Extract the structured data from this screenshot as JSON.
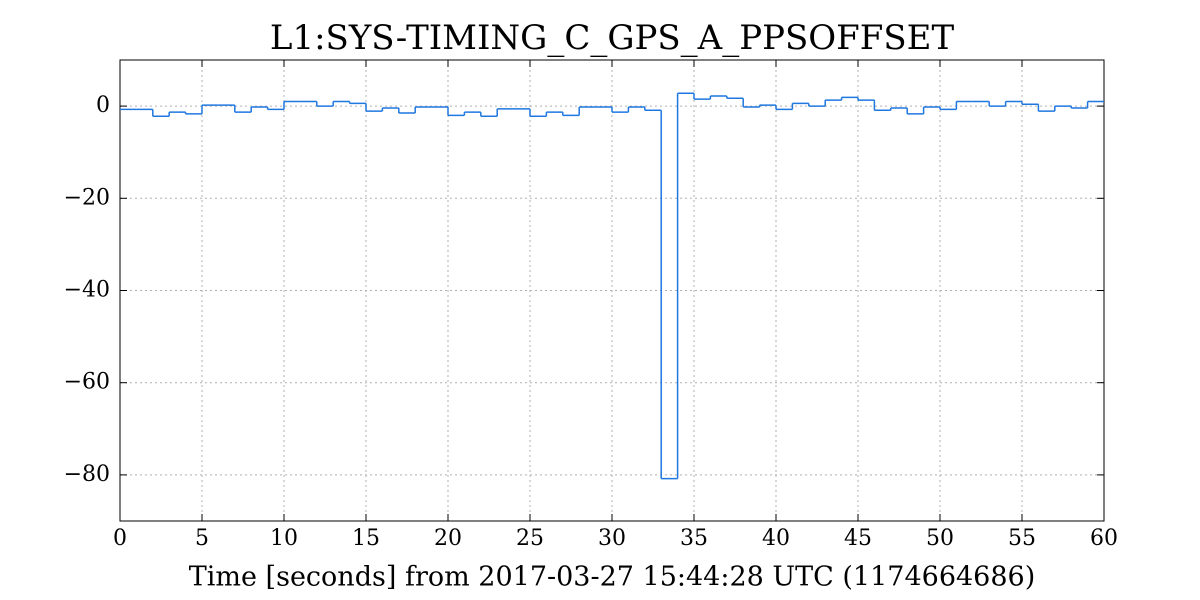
{
  "chart_data": {
    "type": "step",
    "title": "L1:SYS-TIMING_C_GPS_A_PPSOFFSET",
    "x_label": "Time [seconds] from 2017-03-27 15:44:28 UTC (1174664686)",
    "x": [
      0,
      1,
      2,
      3,
      4,
      5,
      6,
      7,
      8,
      9,
      10,
      11,
      12,
      13,
      14,
      15,
      16,
      17,
      18,
      19,
      20,
      21,
      22,
      23,
      24,
      25,
      26,
      27,
      28,
      29,
      30,
      31,
      32,
      33,
      34,
      35,
      36,
      37,
      38,
      39,
      40,
      41,
      42,
      43,
      44,
      45,
      46,
      47,
      48,
      49,
      50,
      51,
      52,
      53,
      54,
      55,
      56,
      57,
      58,
      59
    ],
    "series": [
      {
        "name": "L1:SYS-TIMING_C_GPS_A_PPSOFFSET",
        "color": "#1f77e0",
        "values": [
          -0.7,
          -0.7,
          -2.2,
          -1.3,
          -1.7,
          0.2,
          0.2,
          -1.3,
          -0.2,
          -0.7,
          1,
          1,
          0,
          1,
          0.6,
          -1.1,
          -0.4,
          -1.5,
          -0.2,
          -0.2,
          -2,
          -1.3,
          -2.2,
          -0.6,
          -0.6,
          -2.2,
          -1.3,
          -2,
          -0.2,
          -0.2,
          -1.3,
          -0.2,
          -0.9,
          -80.8,
          2.8,
          1.5,
          2.2,
          1.7,
          -0.2,
          0.2,
          -0.7,
          0.6,
          0,
          1.3,
          1.9,
          1.3,
          -0.9,
          -0.4,
          -1.7,
          -0.2,
          -0.7,
          1,
          1,
          0,
          1,
          0.4,
          -1.1,
          0,
          -0.4,
          1
        ]
      }
    ],
    "xlim": [
      0,
      60
    ],
    "ylim": [
      -90,
      10
    ],
    "xticks": [
      0,
      5,
      10,
      15,
      20,
      25,
      30,
      35,
      40,
      45,
      50,
      55,
      60
    ],
    "yticks": [
      {
        "value": -80,
        "label": "−80"
      },
      {
        "value": -60,
        "label": "−60"
      },
      {
        "value": -40,
        "label": "−40"
      },
      {
        "value": -20,
        "label": "−20"
      },
      0
    ],
    "grid": true
  }
}
